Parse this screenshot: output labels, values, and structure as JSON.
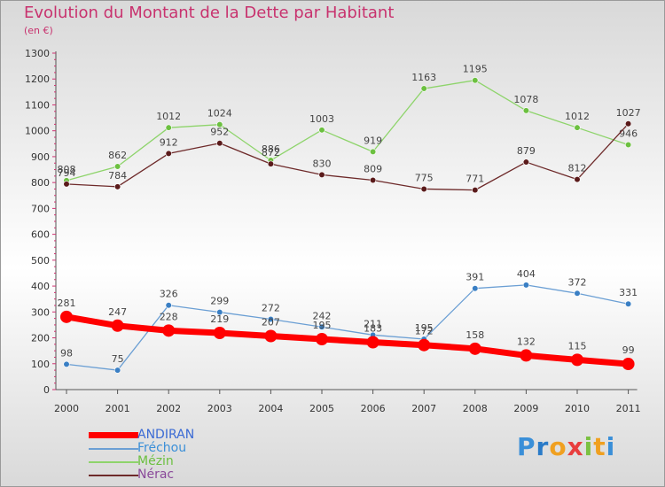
{
  "header": {
    "title": "Evolution du Montant de la Dette par Habitant",
    "subtitle": "(en €)"
  },
  "logo": {
    "letters": [
      "P",
      "r",
      "o",
      "x",
      "i",
      "t",
      "i"
    ],
    "colors": [
      "#3a8fd8",
      "#2a7bc8",
      "#f0a020",
      "#e83d3d",
      "#7bc142",
      "#f0a020",
      "#3a8fd8"
    ]
  },
  "chart_data": {
    "type": "line",
    "title": "Evolution du Montant de la Dette par Habitant",
    "subtitle": "(en €)",
    "x": [
      "2000",
      "2001",
      "2002",
      "2003",
      "2004",
      "2005",
      "2006",
      "2007",
      "2008",
      "2009",
      "2010",
      "2011"
    ],
    "ylim": [
      0,
      1300
    ],
    "yticks": [
      0,
      100,
      200,
      300,
      400,
      500,
      600,
      700,
      800,
      900,
      1000,
      1100,
      1200,
      1300
    ],
    "grid": false,
    "legend_position": "bottom-left",
    "series": [
      {
        "name": "ANDIRAN",
        "color": "#ff0000",
        "highlight": true,
        "values": [
          281,
          247,
          228,
          219,
          207,
          195,
          183,
          172,
          158,
          132,
          115,
          99
        ]
      },
      {
        "name": "Fréchou",
        "color": "#6b9fd4",
        "marker": "#3a7fc4",
        "values": [
          98,
          75,
          326,
          299,
          272,
          242,
          211,
          195,
          391,
          404,
          372,
          331
        ]
      },
      {
        "name": "Mézin",
        "color": "#8ed46b",
        "marker": "#6cc040",
        "values": [
          808,
          862,
          1012,
          1024,
          886,
          1003,
          919,
          1163,
          1195,
          1078,
          1012,
          946
        ]
      },
      {
        "name": "Nérac",
        "color": "#6e2a2a",
        "marker": "#5a1a1a",
        "values": [
          794,
          784,
          912,
          952,
          872,
          830,
          809,
          775,
          771,
          879,
          812,
          1027
        ]
      }
    ]
  }
}
